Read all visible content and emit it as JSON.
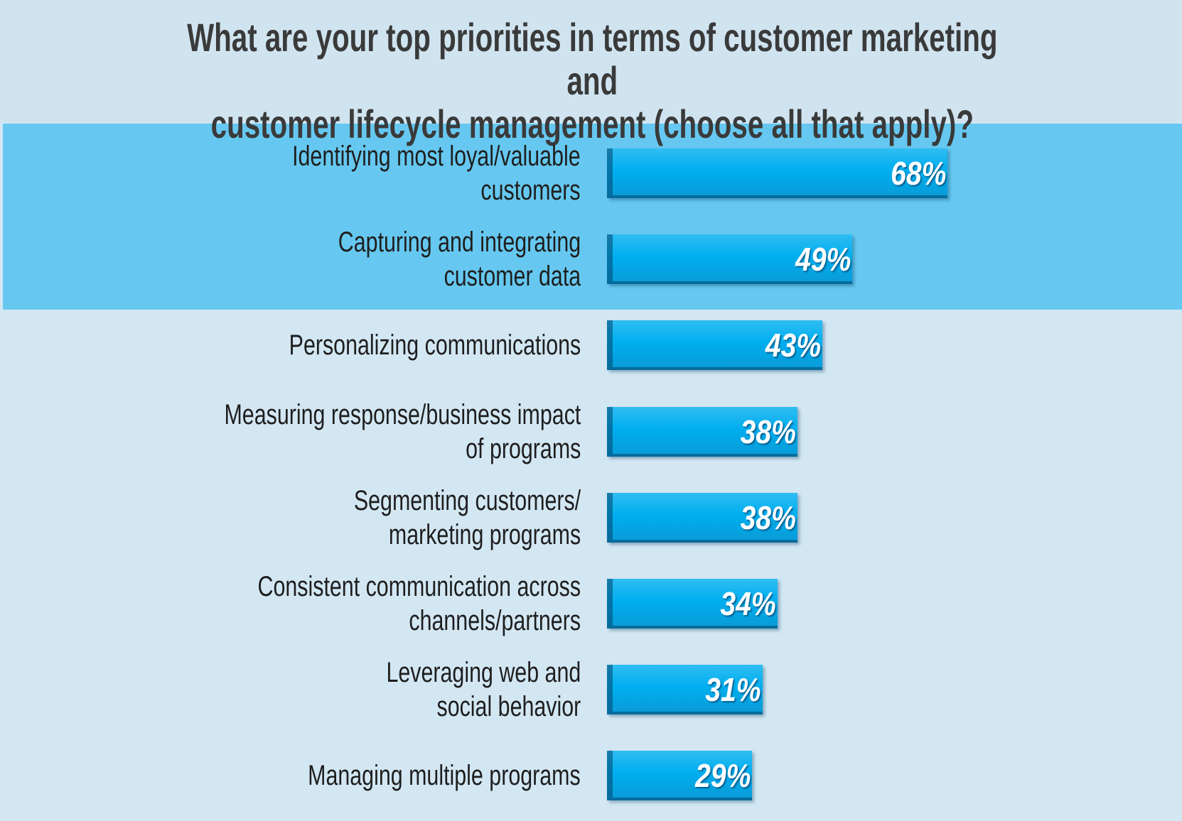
{
  "chart_data": {
    "type": "bar",
    "orientation": "horizontal",
    "title": "What are your top priorities in terms of customer marketing and\ncustomer lifecycle management (choose all that apply)?",
    "categories": [
      "Identifying most loyal/valuable\ncustomers",
      "Capturing and integrating\ncustomer data",
      "Personalizing communications",
      "Measuring response/business impact\nof programs",
      "Segmenting customers/\nmarketing programs",
      "Consistent communication across\nchannels/partners",
      "Leveraging web and\nsocial behavior",
      "Managing multiple programs"
    ],
    "values": [
      68,
      49,
      43,
      38,
      38,
      34,
      31,
      29
    ],
    "value_labels": [
      "68%",
      "49%",
      "43%",
      "38%",
      "38%",
      "34%",
      "31%",
      "29%"
    ],
    "color": "#00aeef"
  }
}
